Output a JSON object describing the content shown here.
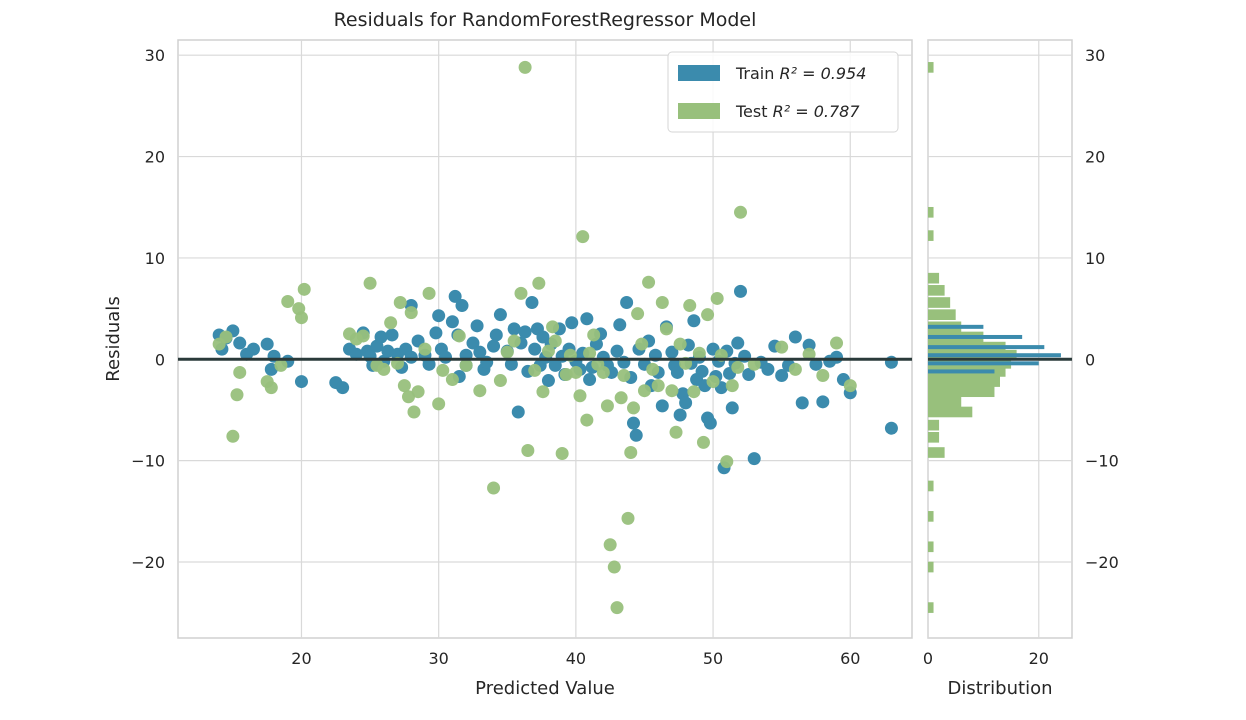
{
  "chart_data": {
    "type": "scatter",
    "title": "Residuals for RandomForestRegressor Model",
    "xlabel": "Predicted Value",
    "ylabel": "Residuals",
    "xlim": [
      11,
      64.5
    ],
    "ylim": [
      -27.5,
      31.5
    ],
    "xticks": [
      20,
      30,
      40,
      50,
      60
    ],
    "yticks": [
      -20,
      -10,
      0,
      10,
      20,
      30
    ],
    "tick_labels": {
      "x": [
        "20",
        "30",
        "40",
        "50",
        "60"
      ],
      "y": [
        "−20",
        "−10",
        "0",
        "10",
        "20",
        "30"
      ],
      "hist_x": [
        "0",
        "20"
      ]
    },
    "grid": true,
    "zero_line": 0,
    "legend_position": "top-right",
    "legend": {
      "train_label": "Train",
      "train_r2": "R² = 0.954",
      "test_label": "Test",
      "test_r2": "R² = 0.787"
    },
    "colors": {
      "train": "#3b8bad",
      "test": "#98c07c",
      "zero_line": "#2a3a3a",
      "grid": "#d9d9d9"
    },
    "series": [
      {
        "name": "Train",
        "points": [
          [
            14,
            2.4
          ],
          [
            14.5,
            2.1
          ],
          [
            15,
            2.8
          ],
          [
            15.5,
            1.6
          ],
          [
            14.2,
            1
          ],
          [
            16.5,
            1
          ],
          [
            16,
            0.5
          ],
          [
            17.5,
            1.5
          ],
          [
            18,
            0.3
          ],
          [
            17.8,
            -1
          ],
          [
            19,
            -0.2
          ],
          [
            20,
            -2.2
          ],
          [
            22.5,
            -2.3
          ],
          [
            23,
            -2.8
          ],
          [
            23.5,
            1
          ],
          [
            24,
            0.5
          ],
          [
            24.5,
            2.6
          ],
          [
            24.8,
            0.8
          ],
          [
            25,
            0.3
          ],
          [
            25.2,
            -0.6
          ],
          [
            25.5,
            1.3
          ],
          [
            25.8,
            2.2
          ],
          [
            26,
            -0.2
          ],
          [
            26.3,
            0.8
          ],
          [
            26.6,
            2.4
          ],
          [
            27,
            0.5
          ],
          [
            27.3,
            -0.8
          ],
          [
            27.6,
            1
          ],
          [
            28,
            0.2
          ],
          [
            28,
            5.3
          ],
          [
            28.5,
            1.8
          ],
          [
            29,
            0.4
          ],
          [
            29.3,
            -0.5
          ],
          [
            29.8,
            2.6
          ],
          [
            30,
            4.3
          ],
          [
            30.2,
            1
          ],
          [
            30.5,
            0.2
          ],
          [
            31,
            3.7
          ],
          [
            31.2,
            6.2
          ],
          [
            31.4,
            2.4
          ],
          [
            31.5,
            -1.7
          ],
          [
            31.7,
            5.3
          ],
          [
            32,
            0.4
          ],
          [
            32,
            -0.6
          ],
          [
            32.5,
            1.6
          ],
          [
            32.8,
            3.3
          ],
          [
            33,
            0.7
          ],
          [
            33.3,
            -1
          ],
          [
            33.5,
            -0.3
          ],
          [
            34,
            1.3
          ],
          [
            34.2,
            2.4
          ],
          [
            34.5,
            4.4
          ],
          [
            35,
            0.8
          ],
          [
            35.3,
            -0.5
          ],
          [
            35.5,
            3
          ],
          [
            35.8,
            -5.2
          ],
          [
            36,
            1.6
          ],
          [
            36.3,
            2.7
          ],
          [
            36.5,
            -1.2
          ],
          [
            36.8,
            5.6
          ],
          [
            37,
            1
          ],
          [
            37.2,
            3
          ],
          [
            37.4,
            -0.6
          ],
          [
            37.6,
            2.2
          ],
          [
            37.8,
            0.2
          ],
          [
            38,
            -2.1
          ],
          [
            38.2,
            1.5
          ],
          [
            38.5,
            -0.6
          ],
          [
            38.8,
            3
          ],
          [
            39,
            0.3
          ],
          [
            39.2,
            -1.5
          ],
          [
            39.5,
            1
          ],
          [
            39.7,
            3.6
          ],
          [
            40,
            -0.2
          ],
          [
            40.3,
            -1
          ],
          [
            40.5,
            0.6
          ],
          [
            40.8,
            4
          ],
          [
            41,
            -2
          ],
          [
            41.2,
            -0.8
          ],
          [
            41.5,
            1.5
          ],
          [
            41.8,
            2.5
          ],
          [
            42,
            0.2
          ],
          [
            42.3,
            -0.6
          ],
          [
            42.6,
            -1.3
          ],
          [
            43,
            0.8
          ],
          [
            43.2,
            3.4
          ],
          [
            43.5,
            -0.3
          ],
          [
            43.7,
            5.6
          ],
          [
            44,
            -1.8
          ],
          [
            44.2,
            -6.3
          ],
          [
            44.4,
            -7.5
          ],
          [
            44.6,
            1
          ],
          [
            45,
            -0.5
          ],
          [
            45.3,
            1.8
          ],
          [
            45.5,
            -2.6
          ],
          [
            45.8,
            0.4
          ],
          [
            46,
            -1.3
          ],
          [
            46.3,
            -4.6
          ],
          [
            46.6,
            3.2
          ],
          [
            47,
            0.7
          ],
          [
            47.2,
            -0.6
          ],
          [
            47.4,
            -1.3
          ],
          [
            47.6,
            -5.5
          ],
          [
            47.8,
            -3.4
          ],
          [
            48,
            -4.3
          ],
          [
            48.2,
            1.4
          ],
          [
            48.4,
            -0.4
          ],
          [
            48.6,
            3.8
          ],
          [
            48.8,
            -2
          ],
          [
            49,
            0.2
          ],
          [
            49.2,
            -1.2
          ],
          [
            49.4,
            -2.6
          ],
          [
            49.6,
            -5.8
          ],
          [
            49.8,
            -6.3
          ],
          [
            50,
            1
          ],
          [
            50.2,
            -1.7
          ],
          [
            50.4,
            -0.2
          ],
          [
            50.6,
            -2.8
          ],
          [
            50.8,
            -10.7
          ],
          [
            51,
            0.8
          ],
          [
            51.2,
            -1.4
          ],
          [
            51.4,
            -4.8
          ],
          [
            51.6,
            -0.4
          ],
          [
            51.8,
            1.6
          ],
          [
            52,
            6.7
          ],
          [
            52.3,
            0.3
          ],
          [
            52.6,
            -1.5
          ],
          [
            53,
            -9.8
          ],
          [
            53.5,
            -0.3
          ],
          [
            54,
            -1
          ],
          [
            54.5,
            1.3
          ],
          [
            55,
            -1.6
          ],
          [
            55.5,
            -0.6
          ],
          [
            56,
            2.2
          ],
          [
            56.5,
            -4.3
          ],
          [
            57,
            1.4
          ],
          [
            57.5,
            -0.5
          ],
          [
            58,
            -4.2
          ],
          [
            58.5,
            -0.2
          ],
          [
            59,
            0.2
          ],
          [
            59.5,
            -2
          ],
          [
            60,
            -3.3
          ],
          [
            63,
            -0.3
          ],
          [
            63,
            -6.8
          ]
        ]
      },
      {
        "name": "Test",
        "points": [
          [
            14,
            1.5
          ],
          [
            14.5,
            2.2
          ],
          [
            15,
            -7.6
          ],
          [
            15.3,
            -3.5
          ],
          [
            15.5,
            -1.3
          ],
          [
            17.5,
            -2.2
          ],
          [
            17.8,
            -2.8
          ],
          [
            18.5,
            -0.6
          ],
          [
            19,
            5.7
          ],
          [
            19.8,
            5
          ],
          [
            20,
            4.1
          ],
          [
            20.2,
            6.9
          ],
          [
            23.5,
            2.5
          ],
          [
            24,
            2
          ],
          [
            24.5,
            2.3
          ],
          [
            25,
            7.5
          ],
          [
            25.5,
            -0.6
          ],
          [
            26,
            -1
          ],
          [
            26.5,
            3.6
          ],
          [
            27,
            -0.4
          ],
          [
            27.2,
            5.6
          ],
          [
            27.5,
            -2.6
          ],
          [
            27.8,
            -3.7
          ],
          [
            28,
            4.6
          ],
          [
            28.2,
            -5.2
          ],
          [
            28.5,
            -3.2
          ],
          [
            29,
            1
          ],
          [
            29.3,
            6.5
          ],
          [
            30,
            -4.4
          ],
          [
            30.3,
            -1.1
          ],
          [
            31,
            -2
          ],
          [
            31.5,
            2.3
          ],
          [
            32,
            -0.6
          ],
          [
            33,
            -3.1
          ],
          [
            34,
            -12.7
          ],
          [
            34.5,
            -2.1
          ],
          [
            35,
            0.7
          ],
          [
            35.5,
            1.8
          ],
          [
            36,
            6.5
          ],
          [
            36.3,
            28.8
          ],
          [
            36.5,
            -9
          ],
          [
            37,
            -1.1
          ],
          [
            37.3,
            7.5
          ],
          [
            37.6,
            -3.2
          ],
          [
            38,
            0.8
          ],
          [
            38.3,
            3.2
          ],
          [
            38.5,
            1.8
          ],
          [
            39,
            -9.3
          ],
          [
            39.3,
            -1.5
          ],
          [
            39.6,
            0.4
          ],
          [
            40,
            -1.3
          ],
          [
            40.3,
            -3.6
          ],
          [
            40.5,
            12.1
          ],
          [
            40.8,
            -6
          ],
          [
            41,
            0.6
          ],
          [
            41.3,
            2.4
          ],
          [
            41.6,
            -0.5
          ],
          [
            42,
            -1.3
          ],
          [
            42.3,
            -4.6
          ],
          [
            42.5,
            -18.3
          ],
          [
            42.8,
            -20.5
          ],
          [
            43,
            -24.5
          ],
          [
            43.3,
            -3.8
          ],
          [
            43.5,
            -1.6
          ],
          [
            43.8,
            -15.7
          ],
          [
            44,
            -9.2
          ],
          [
            44.2,
            -4.8
          ],
          [
            44.5,
            4.5
          ],
          [
            44.8,
            1.5
          ],
          [
            45,
            -3.1
          ],
          [
            45.3,
            7.6
          ],
          [
            45.6,
            -1
          ],
          [
            46,
            -2.6
          ],
          [
            46.3,
            5.6
          ],
          [
            46.6,
            3
          ],
          [
            47,
            -3.1
          ],
          [
            47.3,
            -7.2
          ],
          [
            47.6,
            1.5
          ],
          [
            48,
            -0.4
          ],
          [
            48.3,
            5.3
          ],
          [
            48.6,
            -3.2
          ],
          [
            49,
            0.6
          ],
          [
            49.3,
            -8.2
          ],
          [
            49.6,
            4.4
          ],
          [
            50,
            -2.2
          ],
          [
            50.3,
            6
          ],
          [
            50.6,
            0.4
          ],
          [
            51,
            -10.1
          ],
          [
            51.4,
            -2.6
          ],
          [
            51.8,
            -0.8
          ],
          [
            52,
            14.5
          ],
          [
            53,
            -0.5
          ],
          [
            55,
            1.2
          ],
          [
            56,
            -1
          ],
          [
            57,
            0.5
          ],
          [
            58,
            -1.6
          ],
          [
            59,
            1.6
          ],
          [
            60,
            -2.6
          ]
        ]
      }
    ],
    "distribution": {
      "xlabel": "Distribution",
      "xlim": [
        0,
        26
      ],
      "xticks": [
        0,
        20
      ],
      "bins_center": [
        -24.5,
        -20.5,
        -18.5,
        -15.5,
        -12.5,
        -9.2,
        -7.7,
        -6.5,
        -5.2,
        -4.2,
        -3.2,
        -2.2,
        -1.2,
        -0.4,
        0.4,
        1.2,
        2.2,
        3.2,
        4.4,
        5.6,
        6.8,
        8.0,
        12.2,
        14.5,
        28.8
      ],
      "bin_width": 1.05,
      "test_counts": [
        1,
        1,
        1,
        1,
        1,
        3,
        2,
        2,
        8,
        6,
        12,
        13,
        14,
        15,
        16,
        14,
        10,
        6,
        5,
        4,
        3,
        2,
        1,
        1,
        1
      ],
      "train_counts": [
        0,
        0,
        0,
        0,
        0,
        0,
        0,
        0,
        0,
        0,
        0,
        0,
        12,
        20,
        24,
        21,
        17,
        10,
        0,
        0,
        0,
        0,
        0,
        0,
        0
      ]
    }
  }
}
